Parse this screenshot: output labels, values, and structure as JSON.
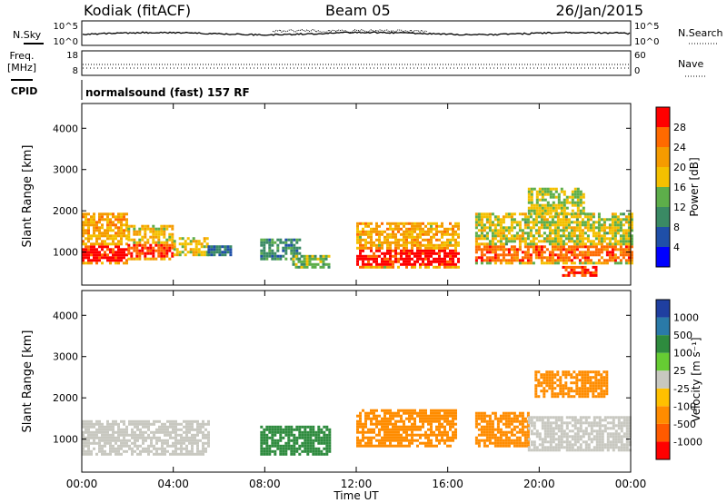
{
  "header": {
    "site": "Kodiak (fitACF)",
    "beam": "Beam 05",
    "date": "26/Jan/2015"
  },
  "noise_panel": {
    "left_label": "N.Sky",
    "left_ticks": [
      "10^5",
      "10^0"
    ],
    "right_label": "N.Search",
    "right_ticks": [
      "10^5",
      "10^0"
    ]
  },
  "freq_panel": {
    "left_label_1": "Freq.",
    "left_label_2": "[MHz]",
    "left_ticks": [
      "18",
      "8"
    ],
    "right_label": "Nave",
    "right_ticks": [
      "60",
      "0"
    ]
  },
  "cpid": {
    "label": "CPID",
    "value": "normalsound (fast) 157 RF"
  },
  "x_axis": {
    "label": "Time UT",
    "ticks": [
      "00:00",
      "04:00",
      "08:00",
      "12:00",
      "16:00",
      "20:00",
      "00:00"
    ]
  },
  "colors": {
    "power_scale": [
      "#0000ff",
      "#1f4fa8",
      "#3a8a64",
      "#5dae4a",
      "#f4c000",
      "#f59b00",
      "#ff6a00",
      "#ff0000"
    ],
    "velocity_scale": [
      "#ff0000",
      "#ff5a00",
      "#ff8c00",
      "#ffc000",
      "#c8c8c0",
      "#66cc33",
      "#2e8b3e",
      "#2a7aa8",
      "#1f3fa0"
    ]
  },
  "chart_data": [
    {
      "type": "heatmap",
      "name": "power-panel",
      "ylabel": "Slant Range [km]",
      "yticks": [
        "4000",
        "3000",
        "2000",
        "1000"
      ],
      "ylim": [
        200,
        4600
      ],
      "xlim": [
        0,
        24
      ],
      "colorbar": {
        "label": "Power [dB]",
        "ticks": [
          "28",
          "24",
          "20",
          "16",
          "12",
          "8",
          "4"
        ],
        "range": [
          0,
          32
        ]
      },
      "regions": [
        {
          "t": [
            0.0,
            2.0
          ],
          "r": [
            700,
            1900
          ],
          "core": [
            750,
            1150
          ],
          "value": 26
        },
        {
          "t": [
            2.0,
            4.0
          ],
          "r": [
            800,
            1600
          ],
          "core": [
            850,
            1150
          ],
          "value": 24
        },
        {
          "t": [
            4.0,
            5.5
          ],
          "r": [
            900,
            1300
          ],
          "value": 18
        },
        {
          "t": [
            5.5,
            6.5
          ],
          "r": [
            900,
            1100
          ],
          "value": 8
        },
        {
          "t": [
            7.8,
            9.5
          ],
          "r": [
            800,
            1300
          ],
          "value": 10
        },
        {
          "t": [
            9.2,
            10.8
          ],
          "r": [
            600,
            900
          ],
          "value": 14
        },
        {
          "t": [
            12.0,
            16.5
          ],
          "r": [
            600,
            1700
          ],
          "core": [
            650,
            1050
          ],
          "value": 26
        },
        {
          "t": [
            17.2,
            24.0
          ],
          "r": [
            700,
            1900
          ],
          "core": [
            750,
            1100
          ],
          "value": 22
        },
        {
          "t": [
            19.5,
            22.0
          ],
          "r": [
            1900,
            2500
          ],
          "value": 16
        },
        {
          "t": [
            21.0,
            22.5
          ],
          "r": [
            400,
            650
          ],
          "value": 28
        }
      ]
    },
    {
      "type": "heatmap",
      "name": "velocity-panel",
      "ylabel": "Slant Range [km]",
      "yticks": [
        "4000",
        "3000",
        "2000",
        "1000"
      ],
      "ylim": [
        200,
        4600
      ],
      "xlim": [
        0,
        24
      ],
      "colorbar": {
        "label": "Velocity [m s⁻¹]",
        "ticks": [
          "1000",
          "500",
          "100",
          "25",
          "-25",
          "-100",
          "-500",
          "-1000"
        ]
      },
      "regions": [
        {
          "t": [
            0.0,
            5.5
          ],
          "r": [
            600,
            1400
          ],
          "value": 0
        },
        {
          "t": [
            7.8,
            10.8
          ],
          "r": [
            600,
            1300
          ],
          "value": 120
        },
        {
          "t": [
            12.0,
            16.3
          ],
          "r": [
            800,
            1700
          ],
          "value": -150
        },
        {
          "t": [
            17.2,
            19.5
          ],
          "r": [
            800,
            1600
          ],
          "value": -120
        },
        {
          "t": [
            19.5,
            24.0
          ],
          "r": [
            700,
            1500
          ],
          "value": 0
        },
        {
          "t": [
            19.8,
            23.0
          ],
          "r": [
            2000,
            2600
          ],
          "value": -200
        }
      ]
    }
  ]
}
